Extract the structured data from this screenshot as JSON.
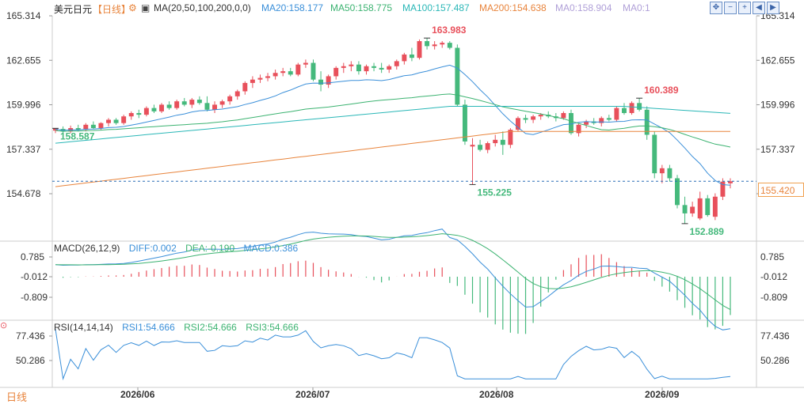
{
  "header": {
    "symbol": "美元日元",
    "period": "【日线】",
    "settings_icon": "gear-icon",
    "ma_label": "MA(20,50,100,200,0,0)",
    "ma20": "MA20:158.177",
    "ma50": "MA50:158.775",
    "ma100": "MA100:157.487",
    "ma200": "MA200:154.638",
    "ma0a": "MA0:158.904",
    "ma0b": "MA0:1",
    "toolbar_icons": [
      "crosshair-icon",
      "zoom-out-icon",
      "zoom-in-icon",
      "chevron-left-icon",
      "chevron-right-icon"
    ]
  },
  "colors": {
    "up": "#e8505b",
    "down": "#45b97c",
    "ma20": "#3a8fd9",
    "ma50": "#3cb371",
    "ma100": "#2ab7b7",
    "ma200": "#e8843c",
    "diff": "#3a8fd9",
    "dea": "#3cb371",
    "rsi": "#3a8fd9",
    "hl_high": "#e8505b",
    "hl_low": "#45b97c"
  },
  "price_axis_ticks": [
    "165.314",
    "162.655",
    "159.996",
    "157.337",
    "154.678"
  ],
  "current_price": "155.420",
  "annotations": {
    "high1": "163.983",
    "low1": "155.225",
    "high2": "160.389",
    "low2": "152.889",
    "start": "158.587"
  },
  "macd": {
    "label": "MACD(26,12,9)",
    "diff": "DIFF:0.002",
    "dea": "DEA:-0.190",
    "macd": "MACD:0.386",
    "ticks": [
      "0.785",
      "-0.012",
      "-0.809"
    ]
  },
  "rsi": {
    "label": "RSI(14,14,14)",
    "rsi1": "RSI1:54.666",
    "rsi2": "RSI2:54.666",
    "rsi3": "RSI3:54.666",
    "ticks": [
      "77.436",
      "50.286"
    ]
  },
  "x_ticks": [
    "2026/06",
    "2026/07",
    "2026/08",
    "2026/09"
  ],
  "period_button": "日线",
  "chart_data": {
    "type": "candlestick",
    "y_range": [
      152.0,
      166.0
    ],
    "candles": [
      [
        158.45,
        158.6,
        158.3,
        158.587
      ],
      [
        158.55,
        158.7,
        158.25,
        158.4
      ],
      [
        158.4,
        158.75,
        158.3,
        158.6
      ],
      [
        158.6,
        158.8,
        158.4,
        158.5
      ],
      [
        158.5,
        158.9,
        158.4,
        158.8
      ],
      [
        158.8,
        159.0,
        158.55,
        158.6
      ],
      [
        158.6,
        158.95,
        158.5,
        158.9
      ],
      [
        158.9,
        159.2,
        158.7,
        159.1
      ],
      [
        159.1,
        159.2,
        158.8,
        158.9
      ],
      [
        158.9,
        159.4,
        158.8,
        159.3
      ],
      [
        159.3,
        159.6,
        159.1,
        159.5
      ],
      [
        159.5,
        159.7,
        159.2,
        159.4
      ],
      [
        159.4,
        159.9,
        159.3,
        159.8
      ],
      [
        159.8,
        160.0,
        159.5,
        159.6
      ],
      [
        159.6,
        160.1,
        159.5,
        160.0
      ],
      [
        160.0,
        160.2,
        159.7,
        159.8
      ],
      [
        159.8,
        160.3,
        159.7,
        160.2
      ],
      [
        160.2,
        160.4,
        159.9,
        160.0
      ],
      [
        160.0,
        160.4,
        159.8,
        160.3
      ],
      [
        160.3,
        160.5,
        160.0,
        160.1
      ],
      [
        160.1,
        160.5,
        159.6,
        159.7
      ],
      [
        159.7,
        160.2,
        159.5,
        160.0
      ],
      [
        160.0,
        160.3,
        159.8,
        160.2
      ],
      [
        160.2,
        160.6,
        160.0,
        160.5
      ],
      [
        160.5,
        160.9,
        160.3,
        160.8
      ],
      [
        160.8,
        161.4,
        160.6,
        161.3
      ],
      [
        161.3,
        161.7,
        161.0,
        161.5
      ],
      [
        161.5,
        161.8,
        161.3,
        161.6
      ],
      [
        161.6,
        161.9,
        161.4,
        161.7
      ],
      [
        161.7,
        162.1,
        161.5,
        161.9
      ],
      [
        161.9,
        162.2,
        161.7,
        162.0
      ],
      [
        162.0,
        162.2,
        161.7,
        161.8
      ],
      [
        161.8,
        162.5,
        161.7,
        162.4
      ],
      [
        162.4,
        162.7,
        162.2,
        162.5
      ],
      [
        162.5,
        162.7,
        161.4,
        161.5
      ],
      [
        161.5,
        162.0,
        160.8,
        161.2
      ],
      [
        161.2,
        161.8,
        161.0,
        161.7
      ],
      [
        161.7,
        162.3,
        161.5,
        162.2
      ],
      [
        162.2,
        162.5,
        161.9,
        162.3
      ],
      [
        162.3,
        162.6,
        162.0,
        162.4
      ],
      [
        162.4,
        162.6,
        161.8,
        162.0
      ],
      [
        162.0,
        162.4,
        161.8,
        162.3
      ],
      [
        162.3,
        162.5,
        162.0,
        162.2
      ],
      [
        162.2,
        162.5,
        161.9,
        162.1
      ],
      [
        162.1,
        162.4,
        161.9,
        162.3
      ],
      [
        162.3,
        162.7,
        162.1,
        162.6
      ],
      [
        162.6,
        163.1,
        162.4,
        163.0
      ],
      [
        163.0,
        163.4,
        162.6,
        162.8
      ],
      [
        162.8,
        163.9,
        162.7,
        163.8
      ],
      [
        163.8,
        163.983,
        163.3,
        163.5
      ],
      [
        163.5,
        163.8,
        163.3,
        163.6
      ],
      [
        163.6,
        163.8,
        163.4,
        163.7
      ],
      [
        163.7,
        163.8,
        163.3,
        163.4
      ],
      [
        163.4,
        163.6,
        159.9,
        160.0
      ],
      [
        160.0,
        160.3,
        157.6,
        157.8
      ],
      [
        157.5,
        158.0,
        155.225,
        157.6
      ],
      [
        157.6,
        157.9,
        157.2,
        157.3
      ],
      [
        157.3,
        157.8,
        157.1,
        157.7
      ],
      [
        157.7,
        158.2,
        157.5,
        157.9
      ],
      [
        157.9,
        158.4,
        157.0,
        157.6
      ],
      [
        157.6,
        158.6,
        157.4,
        158.5
      ],
      [
        158.5,
        159.3,
        158.4,
        159.2
      ],
      [
        159.2,
        159.4,
        158.9,
        159.1
      ],
      [
        159.1,
        159.4,
        158.9,
        159.3
      ],
      [
        159.3,
        159.5,
        159.1,
        159.4
      ],
      [
        159.4,
        159.6,
        159.2,
        159.3
      ],
      [
        159.3,
        159.5,
        159.0,
        159.2
      ],
      [
        159.2,
        159.6,
        159.1,
        159.5
      ],
      [
        159.5,
        159.7,
        158.2,
        158.3
      ],
      [
        158.3,
        158.9,
        158.1,
        158.8
      ],
      [
        158.8,
        159.1,
        158.6,
        159.0
      ],
      [
        159.0,
        159.2,
        158.8,
        158.9
      ],
      [
        158.9,
        159.3,
        158.7,
        159.2
      ],
      [
        159.2,
        159.4,
        159.0,
        159.1
      ],
      [
        159.1,
        159.9,
        159.0,
        159.8
      ],
      [
        159.8,
        160.1,
        159.4,
        159.5
      ],
      [
        159.5,
        160.2,
        159.4,
        160.1
      ],
      [
        160.1,
        160.389,
        159.6,
        159.7
      ],
      [
        159.7,
        159.9,
        157.9,
        158.2
      ],
      [
        158.2,
        158.4,
        155.6,
        155.9
      ],
      [
        155.9,
        156.4,
        155.3,
        156.2
      ],
      [
        156.2,
        156.4,
        155.4,
        155.6
      ],
      [
        155.6,
        155.8,
        153.8,
        154.0
      ],
      [
        154.0,
        154.5,
        152.889,
        153.5
      ],
      [
        153.5,
        154.2,
        153.3,
        153.9
      ],
      [
        153.2,
        154.8,
        153.1,
        154.4
      ],
      [
        154.4,
        154.6,
        153.3,
        153.4
      ],
      [
        153.3,
        154.7,
        153.1,
        154.5
      ],
      [
        154.5,
        155.6,
        154.3,
        155.4
      ],
      [
        155.3,
        155.6,
        155.0,
        155.42
      ]
    ]
  }
}
